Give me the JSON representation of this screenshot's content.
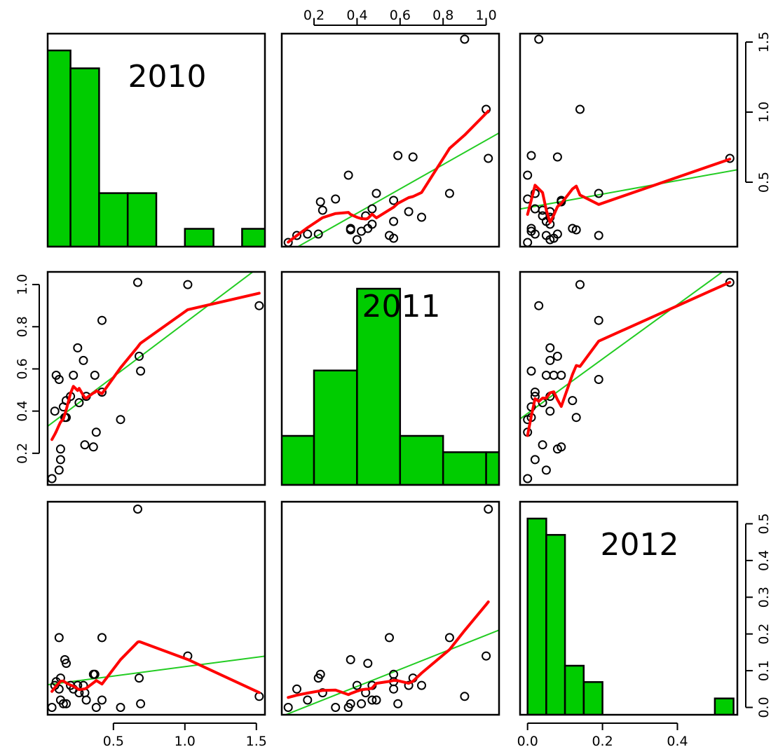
{
  "chart_data": {
    "type": "scatter",
    "variables": [
      "2010",
      "2011",
      "2012"
    ],
    "colors": {
      "bars": "#00cc00",
      "regression_line": "#22cc22",
      "smooth_line": "#ff0000",
      "points": "#000000"
    },
    "ranges": {
      "2010": [
        0.04,
        1.56
      ],
      "2011": [
        0.05,
        1.06
      ],
      "2012": [
        -0.02,
        0.56
      ]
    },
    "axis_ticks": {
      "2010": [
        0.5,
        1.0,
        1.5
      ],
      "2011": [
        0.2,
        0.4,
        0.6,
        0.8,
        1.0
      ],
      "2012": [
        0.0,
        0.1,
        0.2,
        0.3,
        0.4,
        0.5
      ]
    },
    "axis_tick_labels": {
      "2010": [
        "0.5",
        "1.0",
        "1.5"
      ],
      "2011": [
        "0.2",
        "0.4",
        "0.6",
        "0.8",
        "1.0"
      ],
      "2012_bottom": [
        "0.0",
        "0.2",
        "0.4"
      ],
      "2012_right": [
        "0.0",
        "0.1",
        "0.2",
        "0.3",
        "0.4",
        "0.5"
      ]
    },
    "observations": [
      {
        "v2010": 0.07,
        "v2011": 0.08,
        "v2012": 0.0
      },
      {
        "v2010": 0.09,
        "v2011": 0.4,
        "v2012": 0.06
      },
      {
        "v2010": 0.1,
        "v2011": 0.57,
        "v2012": 0.07
      },
      {
        "v2010": 0.12,
        "v2011": 0.55,
        "v2012": 0.19
      },
      {
        "v2010": 0.12,
        "v2011": 0.12,
        "v2012": 0.05
      },
      {
        "v2010": 0.13,
        "v2011": 0.17,
        "v2012": 0.02
      },
      {
        "v2010": 0.13,
        "v2011": 0.22,
        "v2012": 0.08
      },
      {
        "v2010": 0.15,
        "v2011": 0.42,
        "v2012": 0.01
      },
      {
        "v2010": 0.16,
        "v2011": 0.37,
        "v2012": 0.13
      },
      {
        "v2010": 0.17,
        "v2011": 0.37,
        "v2012": 0.01
      },
      {
        "v2010": 0.17,
        "v2011": 0.45,
        "v2012": 0.12
      },
      {
        "v2010": 0.2,
        "v2011": 0.47,
        "v2012": 0.06
      },
      {
        "v2010": 0.22,
        "v2011": 0.57,
        "v2012": 0.05
      },
      {
        "v2010": 0.25,
        "v2011": 0.7,
        "v2012": 0.06
      },
      {
        "v2010": 0.26,
        "v2011": 0.44,
        "v2012": 0.04
      },
      {
        "v2010": 0.29,
        "v2011": 0.64,
        "v2012": 0.06
      },
      {
        "v2010": 0.3,
        "v2011": 0.24,
        "v2012": 0.04
      },
      {
        "v2010": 0.31,
        "v2011": 0.47,
        "v2012": 0.02
      },
      {
        "v2010": 0.36,
        "v2011": 0.23,
        "v2012": 0.09
      },
      {
        "v2010": 0.37,
        "v2011": 0.57,
        "v2012": 0.09
      },
      {
        "v2010": 0.38,
        "v2011": 0.3,
        "v2012": 0.0
      },
      {
        "v2010": 0.42,
        "v2011": 0.83,
        "v2012": 0.19
      },
      {
        "v2010": 0.42,
        "v2011": 0.49,
        "v2012": 0.02
      },
      {
        "v2010": 0.55,
        "v2011": 0.36,
        "v2012": 0.0
      },
      {
        "v2010": 0.67,
        "v2011": 1.01,
        "v2012": 0.54
      },
      {
        "v2010": 0.68,
        "v2011": 0.66,
        "v2012": 0.08
      },
      {
        "v2010": 0.69,
        "v2011": 0.59,
        "v2012": 0.01
      },
      {
        "v2010": 1.02,
        "v2011": 1.0,
        "v2012": 0.14
      },
      {
        "v2010": 1.52,
        "v2011": 0.9,
        "v2012": 0.03
      }
    ]
  }
}
